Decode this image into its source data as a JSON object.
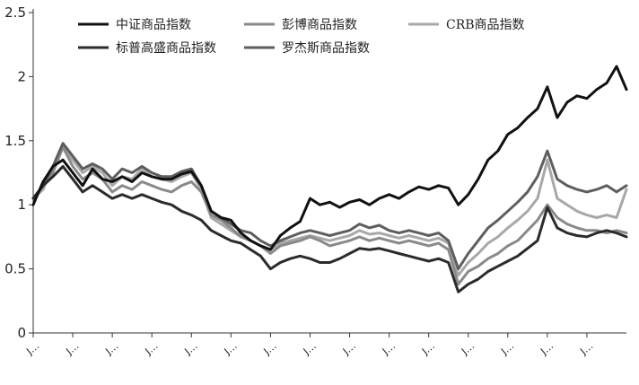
{
  "chart_data": {
    "type": "line",
    "title": "",
    "xlabel": "",
    "ylabel": "",
    "ylim": [
      0,
      2.5
    ],
    "yticks": [
      "0",
      "0.5",
      "1",
      "1.5",
      "2",
      "2.5"
    ],
    "xtick_labels": [
      "J…",
      "J…",
      "J…",
      "J…",
      "J…",
      "J…",
      "J…",
      "J…",
      "J…",
      "J…",
      "J…",
      "J…",
      "J…",
      "J…",
      "J…"
    ],
    "grid": false,
    "legend_placement": "top",
    "x": [
      0,
      1,
      2,
      3,
      4,
      5,
      6,
      7,
      8,
      9,
      10,
      11,
      12,
      13,
      14,
      15,
      16,
      17,
      18,
      19,
      20,
      21,
      22,
      23,
      24,
      25,
      26,
      27,
      28,
      29,
      30,
      31,
      32,
      33,
      34,
      35,
      36,
      37,
      38,
      39,
      40,
      41,
      42,
      43,
      44,
      45,
      46,
      47,
      48,
      49,
      50,
      51,
      52,
      53,
      54,
      55,
      56,
      57,
      58,
      59,
      60
    ],
    "series": [
      {
        "name": "中证商品指数",
        "color": "#111111",
        "values": [
          1.0,
          1.18,
          1.3,
          1.35,
          1.25,
          1.15,
          1.28,
          1.2,
          1.18,
          1.22,
          1.18,
          1.25,
          1.22,
          1.2,
          1.2,
          1.24,
          1.26,
          1.15,
          0.95,
          0.9,
          0.88,
          0.78,
          0.72,
          0.68,
          0.65,
          0.76,
          0.82,
          0.87,
          1.05,
          1.0,
          1.02,
          0.98,
          1.02,
          1.04,
          1.0,
          1.05,
          1.08,
          1.05,
          1.1,
          1.14,
          1.12,
          1.15,
          1.13,
          1.0,
          1.08,
          1.2,
          1.35,
          1.42,
          1.55,
          1.6,
          1.68,
          1.75,
          1.92,
          1.68,
          1.8,
          1.85,
          1.83,
          1.9,
          1.95,
          2.08,
          1.9
        ]
      },
      {
        "name": "彭博商品指数",
        "color": "#8a8a8a",
        "values": [
          1.05,
          1.15,
          1.25,
          1.45,
          1.3,
          1.2,
          1.25,
          1.2,
          1.1,
          1.15,
          1.12,
          1.18,
          1.15,
          1.12,
          1.1,
          1.15,
          1.18,
          1.1,
          0.92,
          0.88,
          0.82,
          0.75,
          0.72,
          0.68,
          0.62,
          0.68,
          0.7,
          0.72,
          0.75,
          0.72,
          0.68,
          0.7,
          0.72,
          0.75,
          0.72,
          0.74,
          0.72,
          0.7,
          0.72,
          0.7,
          0.68,
          0.7,
          0.65,
          0.38,
          0.48,
          0.52,
          0.58,
          0.62,
          0.68,
          0.72,
          0.8,
          0.88,
          1.0,
          0.9,
          0.85,
          0.82,
          0.8,
          0.8,
          0.78,
          0.8,
          0.78
        ]
      },
      {
        "name": "CRB商品指数",
        "color": "#a8a8a8",
        "values": [
          1.05,
          1.12,
          1.3,
          1.45,
          1.35,
          1.25,
          1.3,
          1.25,
          1.15,
          1.22,
          1.2,
          1.28,
          1.22,
          1.2,
          1.18,
          1.22,
          1.25,
          1.12,
          0.9,
          0.85,
          0.8,
          0.75,
          0.72,
          0.68,
          0.65,
          0.7,
          0.72,
          0.74,
          0.76,
          0.74,
          0.72,
          0.74,
          0.76,
          0.8,
          0.77,
          0.78,
          0.76,
          0.74,
          0.76,
          0.74,
          0.72,
          0.74,
          0.7,
          0.45,
          0.55,
          0.62,
          0.7,
          0.75,
          0.82,
          0.88,
          0.95,
          1.05,
          1.35,
          1.05,
          1.0,
          0.95,
          0.92,
          0.9,
          0.92,
          0.9,
          1.12
        ]
      },
      {
        "name": "标普高盛商品指数",
        "color": "#2b2b2b",
        "values": [
          1.05,
          1.15,
          1.22,
          1.3,
          1.2,
          1.1,
          1.15,
          1.1,
          1.05,
          1.08,
          1.05,
          1.08,
          1.05,
          1.02,
          1.0,
          0.95,
          0.92,
          0.88,
          0.8,
          0.76,
          0.72,
          0.7,
          0.65,
          0.6,
          0.5,
          0.55,
          0.58,
          0.6,
          0.58,
          0.55,
          0.55,
          0.58,
          0.62,
          0.66,
          0.65,
          0.66,
          0.64,
          0.62,
          0.6,
          0.58,
          0.56,
          0.58,
          0.55,
          0.32,
          0.38,
          0.42,
          0.48,
          0.52,
          0.56,
          0.6,
          0.66,
          0.72,
          0.98,
          0.82,
          0.78,
          0.76,
          0.75,
          0.78,
          0.8,
          0.78,
          0.75
        ]
      },
      {
        "name": "罗杰斯商品指数",
        "color": "#5e5e5e",
        "values": [
          1.05,
          1.15,
          1.3,
          1.48,
          1.38,
          1.28,
          1.32,
          1.28,
          1.2,
          1.28,
          1.25,
          1.3,
          1.25,
          1.22,
          1.22,
          1.26,
          1.28,
          1.15,
          0.95,
          0.9,
          0.85,
          0.8,
          0.78,
          0.72,
          0.68,
          0.72,
          0.75,
          0.78,
          0.8,
          0.78,
          0.76,
          0.78,
          0.8,
          0.85,
          0.82,
          0.84,
          0.8,
          0.78,
          0.8,
          0.78,
          0.76,
          0.78,
          0.72,
          0.5,
          0.62,
          0.72,
          0.82,
          0.88,
          0.95,
          1.02,
          1.1,
          1.22,
          1.42,
          1.2,
          1.15,
          1.12,
          1.1,
          1.12,
          1.15,
          1.1,
          1.15
        ]
      }
    ]
  }
}
